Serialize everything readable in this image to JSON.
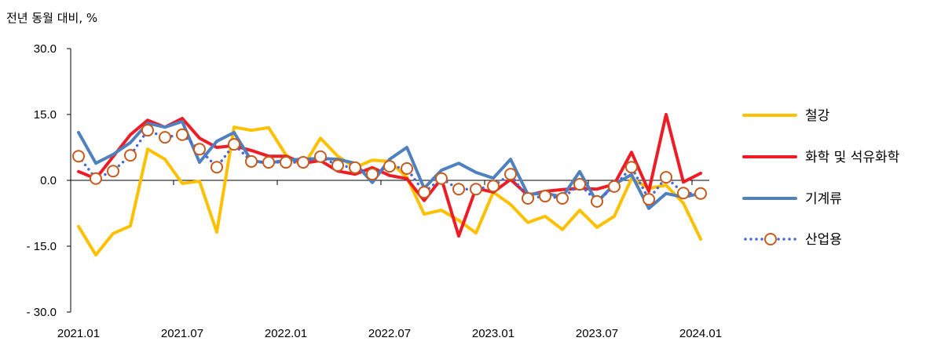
{
  "chart_data": {
    "type": "line",
    "ylabel": "전년 동월 대비, %",
    "ylim": [
      -30,
      30
    ],
    "yticks": [
      {
        "value": 30,
        "label": "30.0"
      },
      {
        "value": 15,
        "label": "15.0"
      },
      {
        "value": 0,
        "label": "0.0"
      },
      {
        "value": -15,
        "label": "- 15.0"
      },
      {
        "value": -30,
        "label": "- 30.0"
      }
    ],
    "x_tick_labels": [
      "2021.01",
      "2021.07",
      "2022.01",
      "2022.07",
      "2023.01",
      "2023.07",
      "2024.01"
    ],
    "grid": false,
    "legend_position": "right",
    "series": [
      {
        "name": "철강",
        "color": "#FFC000",
        "style": "solid",
        "values": [
          -10.5,
          -17.0,
          -12.1,
          -10.4,
          7.1,
          4.8,
          -0.7,
          -0.2,
          -11.8,
          12.1,
          11.4,
          12.0,
          5.8,
          3.2,
          9.6,
          5.5,
          2.9,
          4.6,
          4.3,
          0.7,
          -7.7,
          -6.8,
          -9.1,
          -12.0,
          -2.7,
          -5.5,
          -9.6,
          -8.2,
          -11.2,
          -6.8,
          -10.7,
          -8.2,
          0.4,
          -1.8,
          -1.1,
          -5.2,
          -13.4
        ]
      },
      {
        "name": "화학 및 석유화학",
        "color": "#EE1C25",
        "style": "solid",
        "values": [
          2.0,
          0.4,
          5.4,
          10.4,
          13.7,
          12.1,
          14.1,
          9.6,
          7.5,
          7.9,
          6.8,
          5.5,
          5.5,
          3.9,
          4.5,
          2.1,
          1.4,
          2.9,
          1.1,
          0.4,
          -4.6,
          0.4,
          -12.7,
          -1.8,
          -2.7,
          0.2,
          -3.4,
          -2.5,
          -2.1,
          -1.8,
          -2.0,
          -0.9,
          6.4,
          -2.5,
          15.0,
          -0.4,
          1.6
        ]
      },
      {
        "name": "기계류",
        "color": "#4E81BD",
        "style": "solid",
        "values": [
          10.9,
          3.9,
          5.9,
          8.6,
          13.0,
          12.1,
          13.4,
          4.1,
          8.9,
          10.9,
          4.5,
          3.9,
          4.6,
          4.8,
          5.0,
          4.8,
          3.9,
          -0.5,
          4.8,
          7.5,
          -1.8,
          2.3,
          3.9,
          1.8,
          0.5,
          4.8,
          -3.2,
          -2.9,
          -3.8,
          2.0,
          -5.0,
          -0.9,
          1.3,
          -6.4,
          -3.0,
          -3.8,
          -3.0
        ]
      },
      {
        "name": "산업용",
        "color": "#4A67D6",
        "style": "dotted",
        "marker": "circle",
        "marker_stroke": "#C65B1E",
        "marker_fill": "#FFFFFF",
        "values": [
          5.5,
          0.4,
          2.1,
          5.7,
          11.4,
          9.8,
          10.4,
          7.1,
          3.0,
          8.2,
          4.3,
          4.1,
          4.1,
          4.1,
          5.4,
          3.4,
          2.9,
          1.4,
          3.2,
          2.7,
          -2.7,
          0.4,
          -2.0,
          -2.0,
          -1.3,
          1.4,
          -4.1,
          -3.6,
          -4.1,
          -0.9,
          -4.8,
          -1.4,
          3.0,
          -4.3,
          0.7,
          -2.9,
          -3.0
        ]
      }
    ]
  }
}
